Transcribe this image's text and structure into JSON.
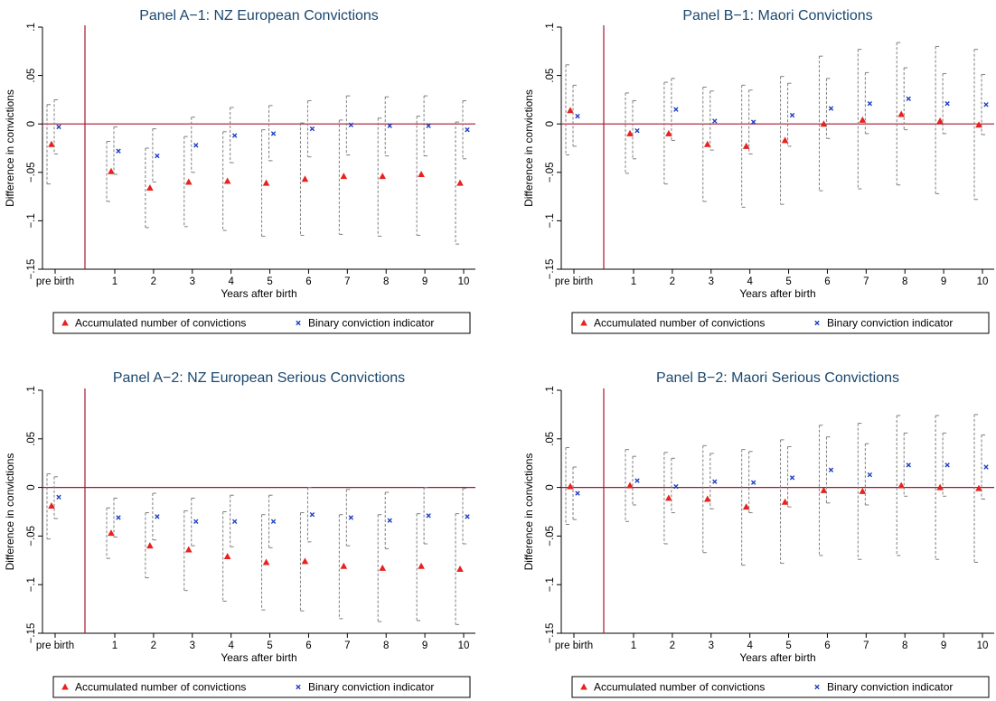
{
  "chart_data": [
    {
      "type": "scatter",
      "title": "Panel A−1: NZ European Convictions",
      "xlabel": "Years after birth",
      "ylabel": "Difference in convictions",
      "categories": [
        "pre birth",
        "1",
        "2",
        "3",
        "4",
        "5",
        "6",
        "7",
        "8",
        "9",
        "10"
      ],
      "y_ticks": [
        ".1",
        ".05",
        "0",
        "−.05",
        "−.1",
        "−.15"
      ],
      "ylim": [
        -0.15,
        0.1
      ],
      "series": [
        {
          "name": "Accumulated number of convictions",
          "color": "#e8211d",
          "marker": "triangle",
          "values": [
            -0.021,
            -0.049,
            -0.066,
            -0.06,
            -0.059,
            -0.061,
            -0.057,
            -0.054,
            -0.054,
            -0.052,
            -0.061
          ],
          "ci_low": [
            -0.062,
            -0.08,
            -0.107,
            -0.106,
            -0.11,
            -0.116,
            -0.115,
            -0.114,
            -0.116,
            -0.115,
            -0.124
          ],
          "ci_high": [
            0.02,
            -0.018,
            -0.025,
            -0.013,
            -0.008,
            -0.006,
            0.001,
            0.004,
            0.006,
            0.008,
            0.002
          ]
        },
        {
          "name": "Binary conviction indicator",
          "color": "#1f3fc4",
          "marker": "x",
          "values": [
            -0.003,
            -0.028,
            -0.033,
            -0.022,
            -0.012,
            -0.01,
            -0.005,
            -0.001,
            -0.002,
            -0.002,
            -0.006
          ],
          "ci_low": [
            -0.031,
            -0.052,
            -0.06,
            -0.05,
            -0.04,
            -0.038,
            -0.034,
            -0.032,
            -0.033,
            -0.033,
            -0.036
          ],
          "ci_high": [
            0.025,
            -0.003,
            -0.005,
            0.007,
            0.017,
            0.019,
            0.024,
            0.029,
            0.028,
            0.029,
            0.024
          ]
        }
      ],
      "reference_line": {
        "y": 0,
        "color": "#a6192e"
      },
      "vertical_line_between": [
        "pre birth",
        "1"
      ],
      "legend": "bottom"
    },
    {
      "type": "scatter",
      "title": "Panel B−1: Maori Convictions",
      "xlabel": "Years after birth",
      "ylabel": "Difference in convictions",
      "categories": [
        "pre birth",
        "1",
        "2",
        "3",
        "4",
        "5",
        "6",
        "7",
        "8",
        "9",
        "10"
      ],
      "y_ticks": [
        ".1",
        ".05",
        "0",
        "−.05",
        "−.1",
        "−.15"
      ],
      "ylim": [
        -0.15,
        0.1
      ],
      "series": [
        {
          "name": "Accumulated number of convictions",
          "color": "#e8211d",
          "marker": "triangle",
          "values": [
            0.014,
            -0.01,
            -0.01,
            -0.021,
            -0.023,
            -0.017,
            0.0,
            0.004,
            0.01,
            0.003,
            -0.001
          ],
          "ci_low": [
            -0.032,
            -0.051,
            -0.062,
            -0.08,
            -0.086,
            -0.083,
            -0.069,
            -0.067,
            -0.063,
            -0.072,
            -0.078
          ],
          "ci_high": [
            0.061,
            0.032,
            0.043,
            0.038,
            0.04,
            0.049,
            0.07,
            0.077,
            0.084,
            0.08,
            0.077
          ]
        },
        {
          "name": "Binary conviction indicator",
          "color": "#1f3fc4",
          "marker": "x",
          "values": [
            0.008,
            -0.007,
            0.015,
            0.003,
            0.002,
            0.009,
            0.016,
            0.021,
            0.026,
            0.021,
            0.02
          ],
          "ci_low": [
            -0.023,
            -0.036,
            -0.017,
            -0.027,
            -0.031,
            -0.023,
            -0.015,
            -0.01,
            -0.006,
            -0.01,
            -0.011
          ],
          "ci_high": [
            0.04,
            0.024,
            0.047,
            0.034,
            0.035,
            0.042,
            0.047,
            0.053,
            0.058,
            0.052,
            0.051
          ]
        }
      ],
      "reference_line": {
        "y": 0,
        "color": "#a6192e"
      },
      "vertical_line_between": [
        "pre birth",
        "1"
      ],
      "legend": "bottom"
    },
    {
      "type": "scatter",
      "title": "Panel A−2: NZ European Serious Convictions",
      "xlabel": "Years after birth",
      "ylabel": "Difference in convictions",
      "categories": [
        "pre birth",
        "1",
        "2",
        "3",
        "4",
        "5",
        "6",
        "7",
        "8",
        "9",
        "10"
      ],
      "y_ticks": [
        ".1",
        ".05",
        "0",
        "−.05",
        "−.1",
        "−.15"
      ],
      "ylim": [
        -0.15,
        0.1
      ],
      "series": [
        {
          "name": "Accumulated number of convictions",
          "color": "#e8211d",
          "marker": "triangle",
          "values": [
            -0.019,
            -0.047,
            -0.06,
            -0.064,
            -0.071,
            -0.077,
            -0.076,
            -0.081,
            -0.083,
            -0.081,
            -0.084
          ],
          "ci_low": [
            -0.053,
            -0.073,
            -0.093,
            -0.106,
            -0.117,
            -0.126,
            -0.127,
            -0.135,
            -0.138,
            -0.137,
            -0.141
          ],
          "ci_high": [
            0.014,
            -0.021,
            -0.026,
            -0.024,
            -0.025,
            -0.028,
            -0.026,
            -0.028,
            -0.028,
            -0.027,
            -0.027
          ]
        },
        {
          "name": "Binary conviction indicator",
          "color": "#1f3fc4",
          "marker": "x",
          "values": [
            -0.01,
            -0.031,
            -0.03,
            -0.035,
            -0.035,
            -0.035,
            -0.028,
            -0.031,
            -0.034,
            -0.029,
            -0.03
          ],
          "ci_low": [
            -0.032,
            -0.051,
            -0.054,
            -0.06,
            -0.061,
            -0.062,
            -0.056,
            -0.06,
            -0.063,
            -0.058,
            -0.058
          ],
          "ci_high": [
            0.011,
            -0.011,
            -0.006,
            -0.011,
            -0.008,
            -0.008,
            0.0,
            -0.002,
            -0.005,
            0.0,
            -0.001
          ]
        }
      ],
      "reference_line": {
        "y": 0,
        "color": "#a6192e"
      },
      "vertical_line_between": [
        "pre birth",
        "1"
      ],
      "legend": "bottom"
    },
    {
      "type": "scatter",
      "title": "Panel B−2: Maori Serious Convictions",
      "xlabel": "Years after birth",
      "ylabel": "Difference in convictions",
      "categories": [
        "pre birth",
        "1",
        "2",
        "3",
        "4",
        "5",
        "6",
        "7",
        "8",
        "9",
        "10"
      ],
      "y_ticks": [
        ".1",
        ".05",
        "0",
        "−.05",
        "−.1",
        "−.15"
      ],
      "ylim": [
        -0.15,
        0.1
      ],
      "series": [
        {
          "name": "Accumulated number of convictions",
          "color": "#e8211d",
          "marker": "triangle",
          "values": [
            0.001,
            0.002,
            -0.011,
            -0.012,
            -0.02,
            -0.015,
            -0.003,
            -0.004,
            0.002,
            0.0,
            -0.001
          ],
          "ci_low": [
            -0.038,
            -0.035,
            -0.058,
            -0.067,
            -0.08,
            -0.078,
            -0.07,
            -0.074,
            -0.07,
            -0.074,
            -0.077
          ],
          "ci_high": [
            0.041,
            0.039,
            0.036,
            0.043,
            0.039,
            0.049,
            0.064,
            0.066,
            0.074,
            0.074,
            0.075
          ]
        },
        {
          "name": "Binary conviction indicator",
          "color": "#1f3fc4",
          "marker": "x",
          "values": [
            -0.006,
            0.007,
            0.001,
            0.006,
            0.005,
            0.01,
            0.018,
            0.013,
            0.023,
            0.023,
            0.021
          ],
          "ci_low": [
            -0.033,
            -0.018,
            -0.026,
            -0.022,
            -0.026,
            -0.02,
            -0.016,
            -0.018,
            -0.009,
            -0.009,
            -0.012
          ],
          "ci_high": [
            0.021,
            0.032,
            0.03,
            0.035,
            0.037,
            0.042,
            0.052,
            0.045,
            0.056,
            0.056,
            0.054
          ]
        }
      ],
      "reference_line": {
        "y": 0,
        "color": "#a6192e"
      },
      "vertical_line_between": [
        "pre birth",
        "1"
      ],
      "legend": "bottom"
    }
  ]
}
